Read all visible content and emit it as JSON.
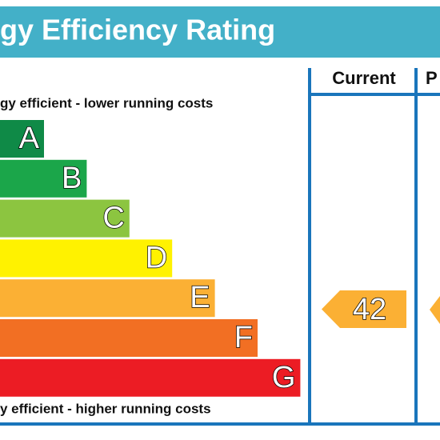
{
  "header": {
    "title": "gy Efficiency Rating"
  },
  "columns": [
    "Current",
    "P"
  ],
  "top_note": "gy efficient - lower running costs",
  "bottom_note": "y efficient - higher running costs",
  "bands": [
    {
      "letter": "A",
      "color": "#0f8a47"
    },
    {
      "letter": "B",
      "color": "#1ba64a"
    },
    {
      "letter": "C",
      "color": "#8cc540"
    },
    {
      "letter": "D",
      "color": "#fff200"
    },
    {
      "letter": "E",
      "color": "#fbb034"
    },
    {
      "letter": "F",
      "color": "#f26f23"
    },
    {
      "letter": "G",
      "color": "#ec1c24"
    }
  ],
  "current_rating": {
    "value": 42,
    "color": "#fbb034"
  }
}
